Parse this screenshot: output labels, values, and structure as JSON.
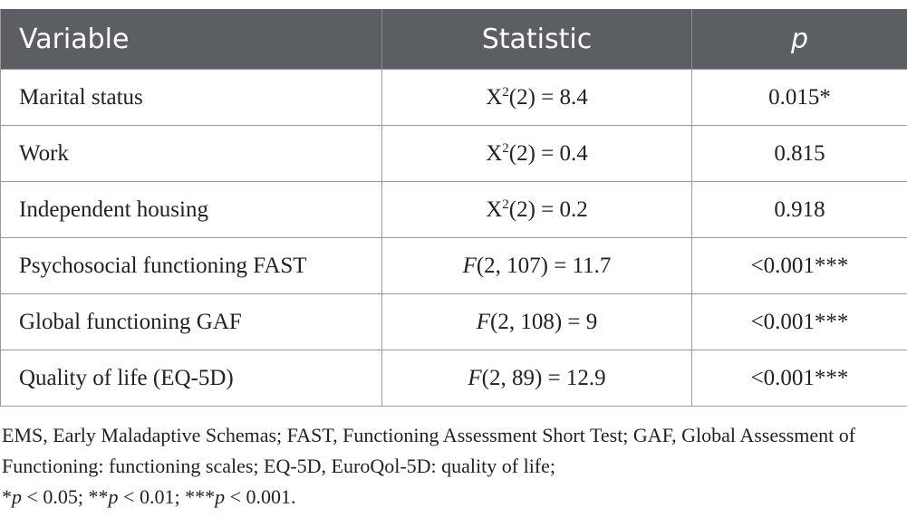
{
  "table": {
    "headers": [
      "Variable",
      "Statistic",
      "p"
    ],
    "rows": [
      {
        "variable": "Marital status",
        "stat_prefix": "X",
        "stat_sup": "2",
        "stat_rest": "(2) = 8.4",
        "p": "0.015*"
      },
      {
        "variable": "Work",
        "stat_prefix": "X",
        "stat_sup": "2",
        "stat_rest": "(2) = 0.4",
        "p": "0.815"
      },
      {
        "variable": "Independent housing",
        "stat_prefix": "X",
        "stat_sup": "2",
        "stat_rest": "(2) = 0.2",
        "p": "0.918"
      },
      {
        "variable": "Psychosocial functioning FAST",
        "stat_ital": "F",
        "stat_rest": "(2, 107) = 11.7",
        "p": "<0.001***"
      },
      {
        "variable": "Global functioning GAF",
        "stat_ital": "F",
        "stat_rest": "(2, 108) = 9",
        "p": "<0.001***"
      },
      {
        "variable": "Quality of life (EQ-5D)",
        "stat_ital": "F",
        "stat_rest": "(2, 89) = 12.9",
        "p": "<0.001***"
      }
    ]
  },
  "footnote": {
    "line1": "EMS, Early Maladaptive Schemas; FAST, Functioning Assessment Short Test; GAF, Global Assessment of Functioning: functioning scales; EQ-5D, EuroQol-5D: quality of life;",
    "sig": [
      {
        "star": "*",
        "p": "p",
        "rest": " < 0.05; "
      },
      {
        "star": "**",
        "p": "p",
        "rest": " < 0.01; "
      },
      {
        "star": "***",
        "p": "p",
        "rest": " < 0.001."
      }
    ]
  },
  "colors": {
    "header_bg": "#5b5f63",
    "header_text": "#ffffff",
    "border": "#9a9a9a",
    "body_text": "#222222"
  }
}
